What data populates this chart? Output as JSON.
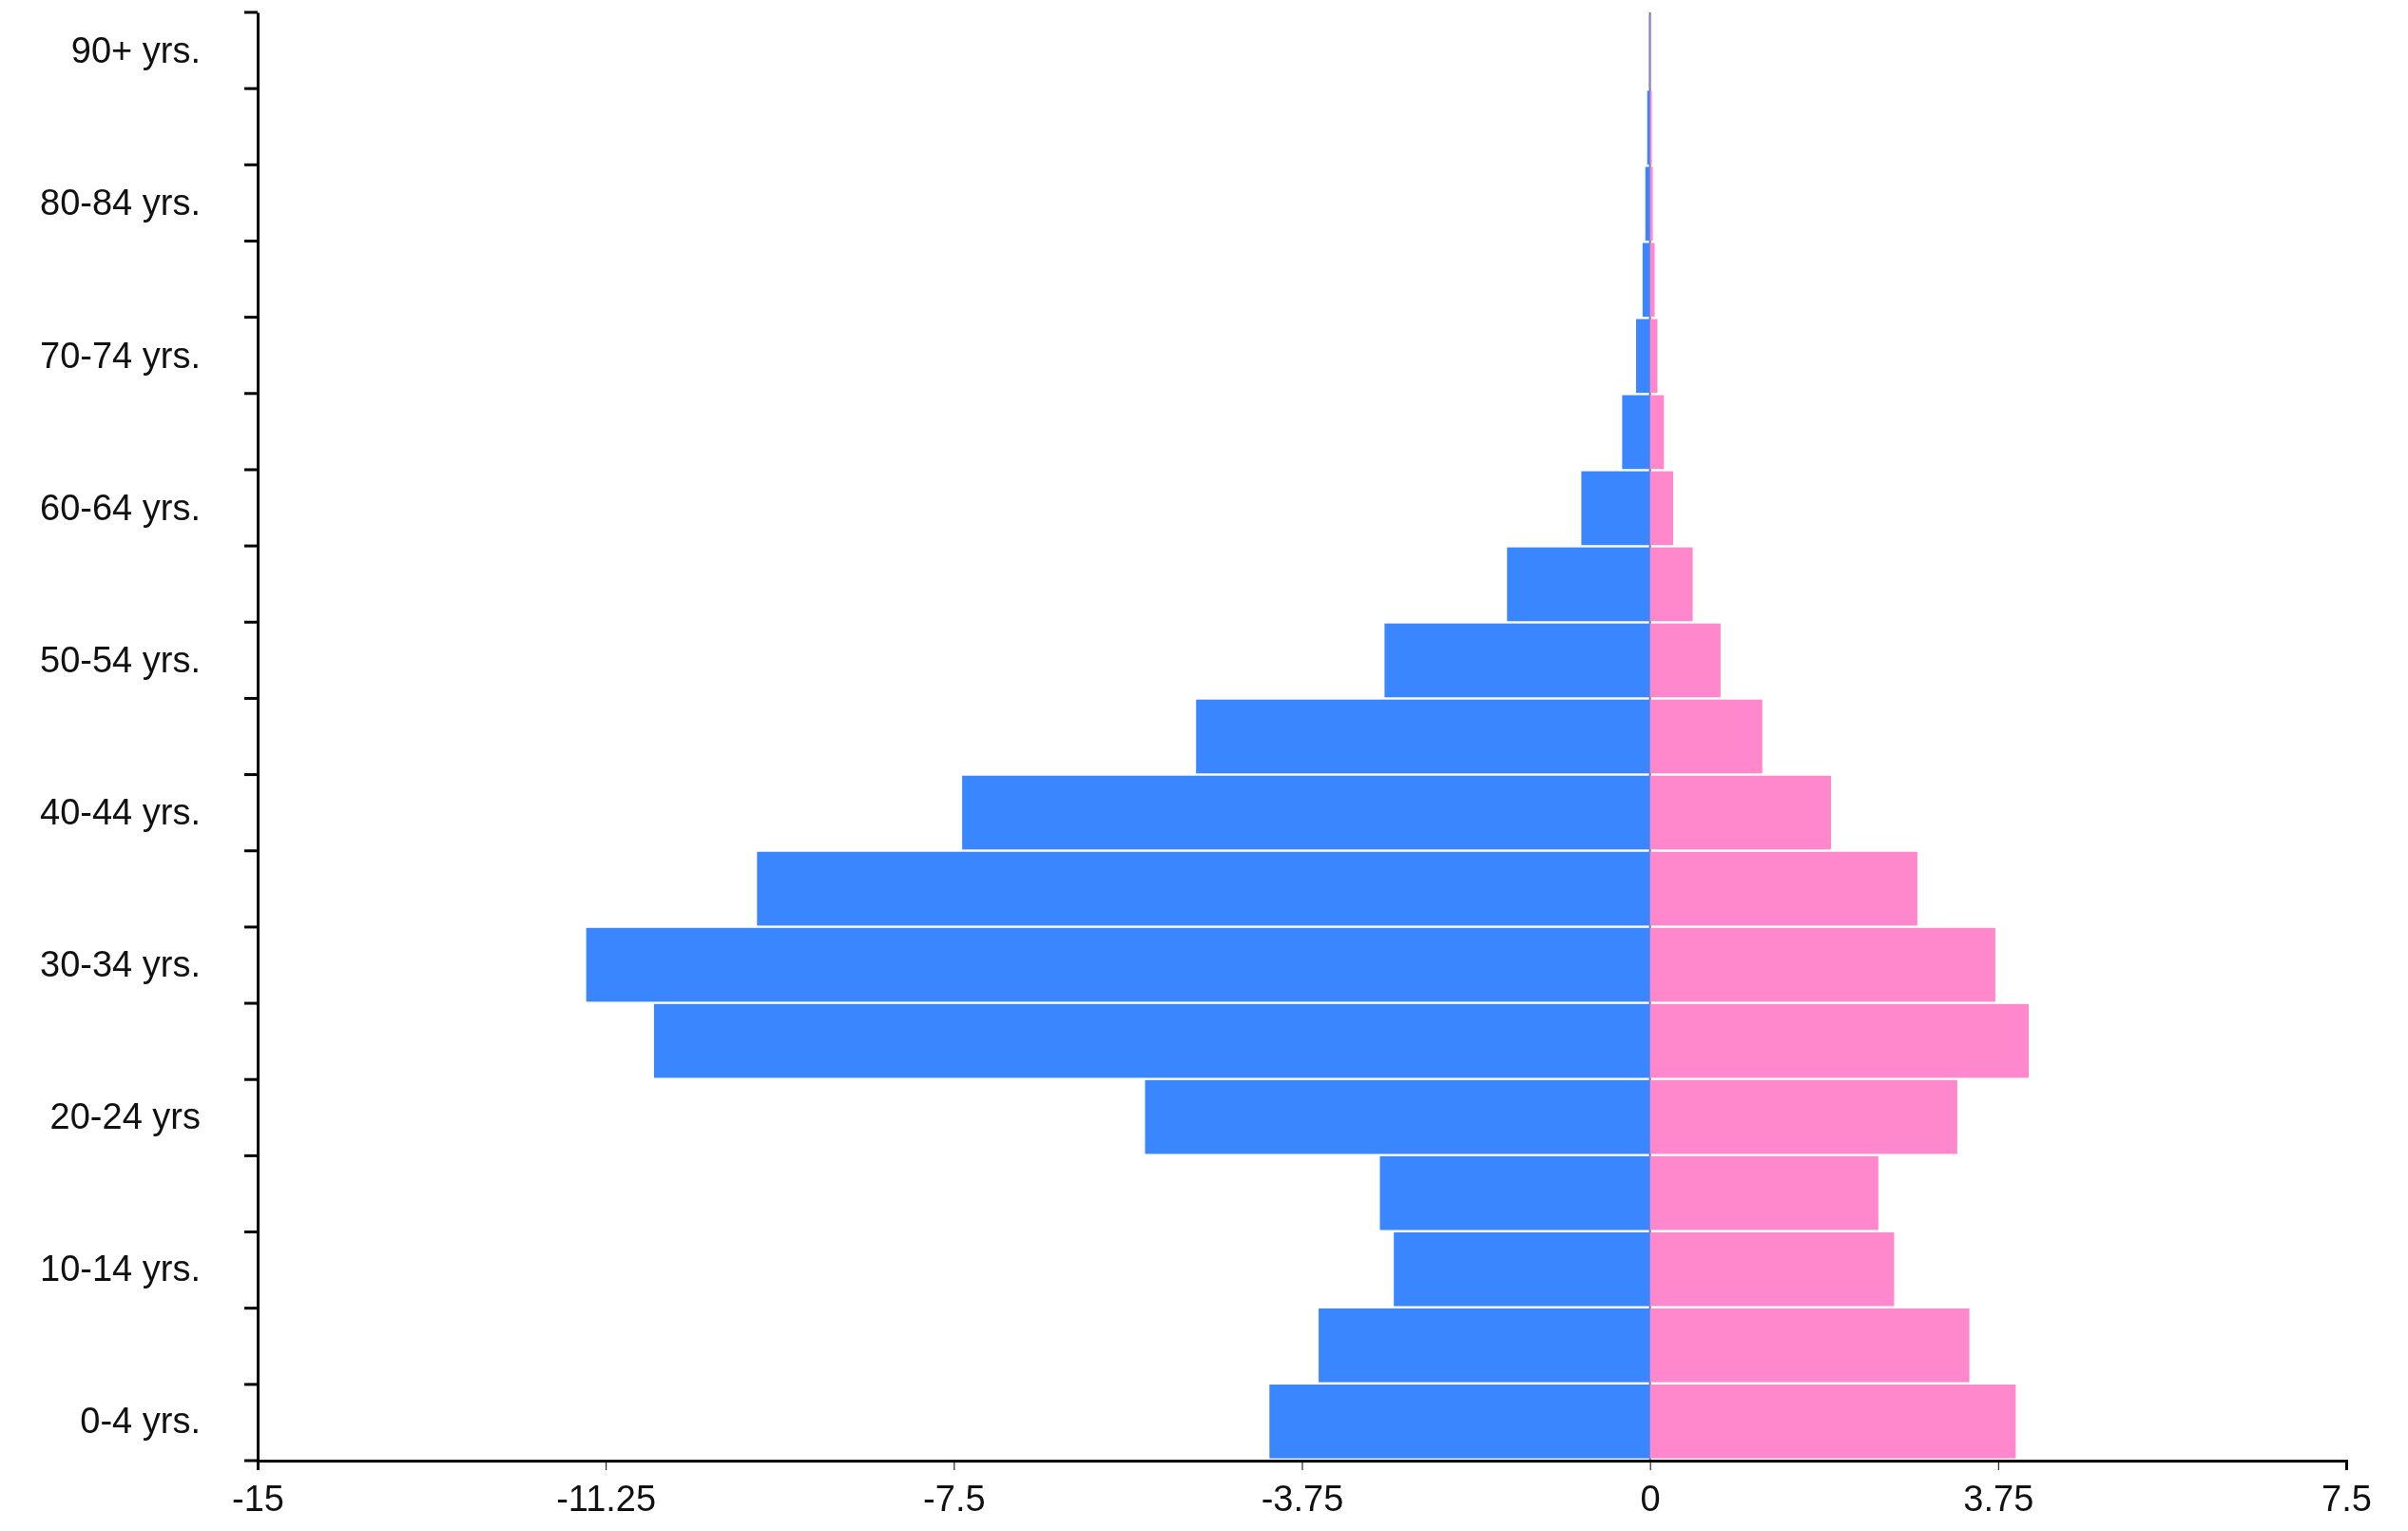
{
  "chart_data": {
    "type": "bar",
    "orientation": "horizontal",
    "stacked": true,
    "categories": [
      "90+ yrs.",
      null,
      "80-84 yrs.",
      null,
      "70-74 yrs.",
      null,
      "60-64 yrs.",
      null,
      "50-54 yrs.",
      null,
      "40-44 yrs.",
      null,
      "30-34 yrs.",
      null,
      "20-24 yrs",
      null,
      "10-14 yrs.",
      null,
      "0-4 yrs."
    ],
    "series": [
      {
        "color": "#3a86ff",
        "values": [
          -0.01,
          -0.03,
          -0.05,
          -0.08,
          -0.15,
          -0.3,
          -0.74,
          -1.54,
          -2.86,
          -4.89,
          -7.41,
          -9.62,
          -11.46,
          -10.73,
          -5.44,
          -2.91,
          -2.76,
          -3.57,
          -4.1
        ]
      },
      {
        "color": "#ff88cc",
        "values": [
          0.01,
          0.02,
          0.03,
          0.05,
          0.08,
          0.15,
          0.25,
          0.46,
          0.76,
          1.21,
          1.95,
          2.88,
          3.72,
          4.08,
          3.31,
          2.46,
          2.63,
          3.44,
          3.94
        ]
      }
    ],
    "xlim": [
      -15,
      7.5
    ],
    "xticks": [
      -15,
      -11.25,
      -7.5,
      -3.75,
      0,
      3.75,
      7.5
    ]
  }
}
